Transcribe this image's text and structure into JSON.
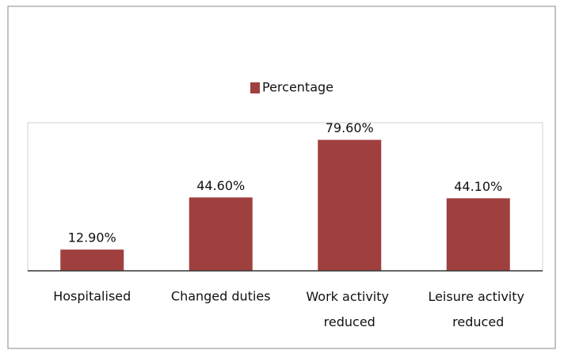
{
  "chart_data": {
    "type": "bar",
    "categories": [
      "Hospitalised",
      "Changed duties",
      "Work activity reduced",
      "Leisure activity reduced"
    ],
    "series": [
      {
        "name": "Percentage",
        "color": "#a0403e",
        "values": [
          12.9,
          44.6,
          79.6,
          44.1
        ],
        "value_labels": [
          "12.90%",
          "44.60%",
          "79.60%",
          "44.10%"
        ]
      }
    ],
    "ylim": [
      0,
      90
    ],
    "legend": "top"
  }
}
